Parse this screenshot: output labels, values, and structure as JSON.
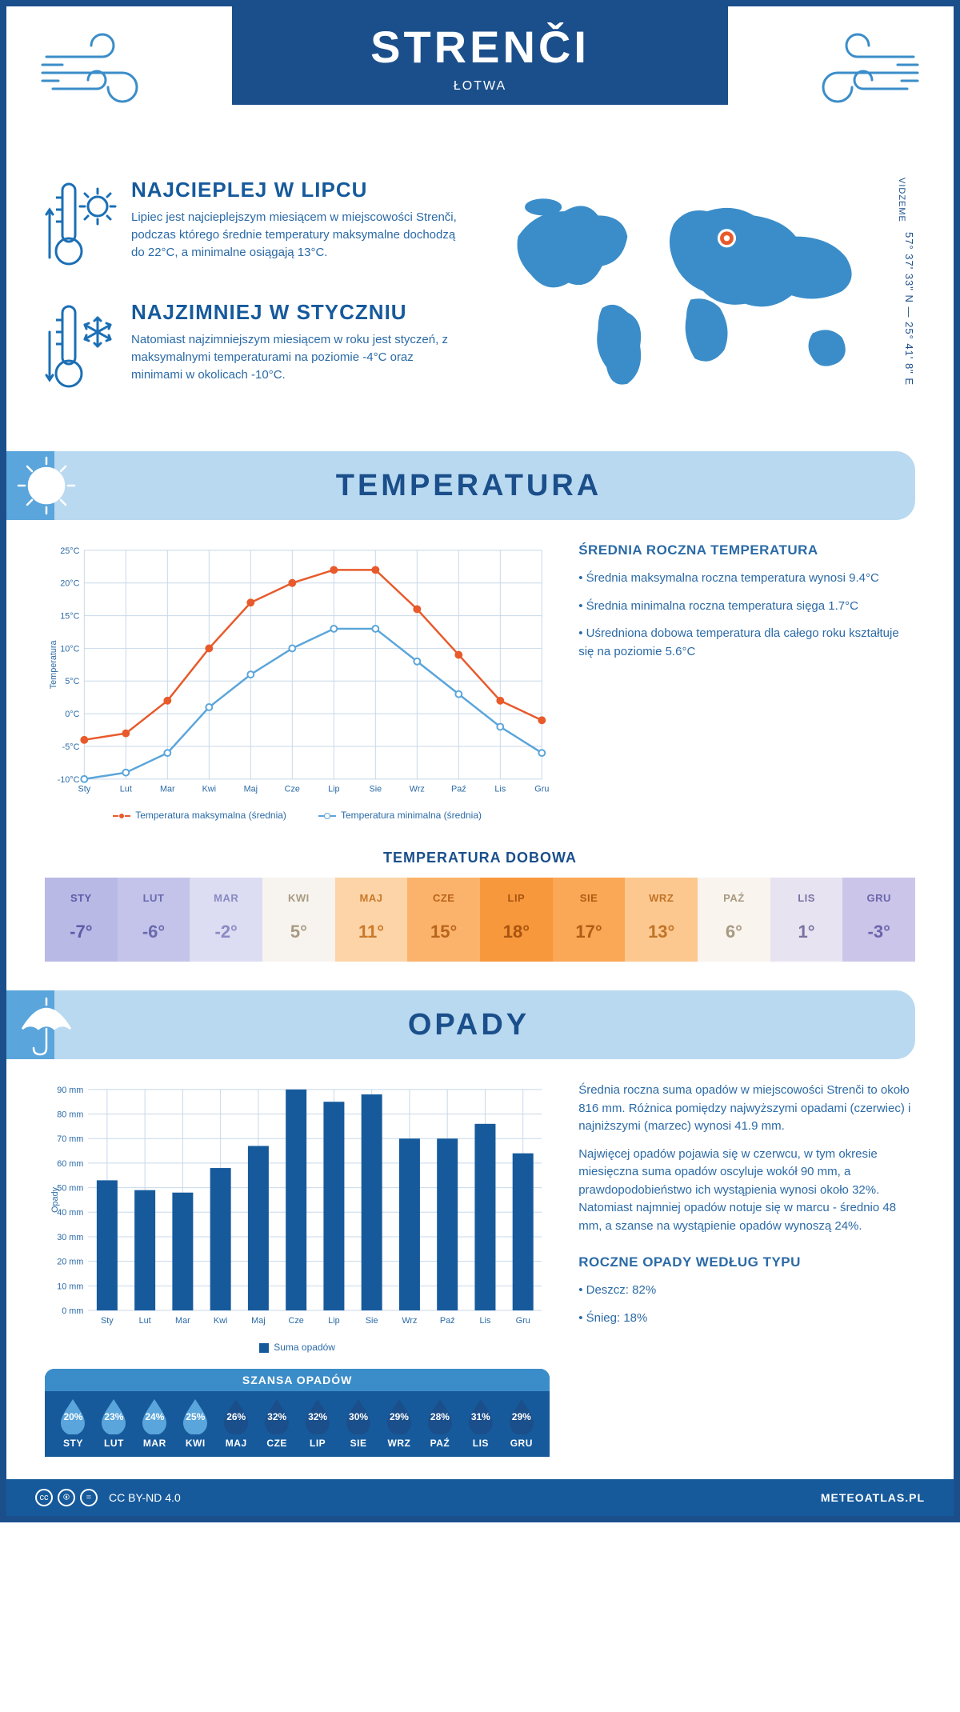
{
  "header": {
    "title": "STRENČI",
    "country": "ŁOTWA"
  },
  "coords": "57° 37' 33\" N — 25° 41' 8\" E",
  "region": "VIDZEME",
  "highlights": {
    "warm": {
      "title": "NAJCIEPLEJ W LIPCU",
      "text": "Lipiec jest najcieplejszym miesiącem w miejscowości Strenči, podczas którego średnie temperatury maksymalne dochodzą do 22°C, a minimalne osiągają 13°C."
    },
    "cold": {
      "title": "NAJZIMNIEJ W STYCZNIU",
      "text": "Natomiast najzimniejszym miesiącem w roku jest styczeń, z maksymalnymi temperaturami na poziomie -4°C oraz minimami w okolicach -10°C."
    }
  },
  "temp_section": {
    "banner": "TEMPERATURA",
    "side_title": "ŚREDNIA ROCZNA TEMPERATURA",
    "bullets": [
      "• Średnia maksymalna roczna temperatura wynosi 9.4°C",
      "• Średnia minimalna roczna temperatura sięga 1.7°C",
      "• Uśredniona dobowa temperatura dla całego roku kształtuje się na poziomie 5.6°C"
    ],
    "chart": {
      "type": "line",
      "months": [
        "Sty",
        "Lut",
        "Mar",
        "Kwi",
        "Maj",
        "Cze",
        "Lip",
        "Sie",
        "Wrz",
        "Paź",
        "Lis",
        "Gru"
      ],
      "max": [
        -4,
        -3,
        2,
        10,
        17,
        20,
        22,
        22,
        16,
        9,
        2,
        -1
      ],
      "min": [
        -10,
        -9,
        -6,
        1,
        6,
        10,
        13,
        13,
        8,
        3,
        -2,
        -6
      ],
      "ylim": [
        -10,
        25
      ],
      "ytick_step": 5,
      "ylabel": "Temperatura",
      "max_color": "#e85a2b",
      "min_color": "#5aa5db",
      "grid_color": "#c8d8e8",
      "legend_max": "Temperatura maksymalna (średnia)",
      "legend_min": "Temperatura minimalna (średnia)"
    },
    "daily_title": "TEMPERATURA DOBOWA",
    "daily": {
      "months": [
        "STY",
        "LUT",
        "MAR",
        "KWI",
        "MAJ",
        "CZE",
        "LIP",
        "SIE",
        "WRZ",
        "PAŹ",
        "LIS",
        "GRU"
      ],
      "values": [
        "-7°",
        "-6°",
        "-2°",
        "5°",
        "11°",
        "15°",
        "18°",
        "17°",
        "13°",
        "6°",
        "1°",
        "-3°"
      ],
      "colors": [
        "#b9b9e6",
        "#c4c4ea",
        "#dcdcf2",
        "#f7f3ee",
        "#fdd4a7",
        "#fbb36c",
        "#f8983d",
        "#faa756",
        "#fcc88f",
        "#f9f4ee",
        "#e8e3f1",
        "#cbc6e9"
      ],
      "text_colors": [
        "#5b5ba6",
        "#6a6aae",
        "#8a8ac4",
        "#a89a82",
        "#c97a2b",
        "#b9641a",
        "#a9540f",
        "#b05c14",
        "#c17327",
        "#a89a82",
        "#7a74a2",
        "#6b65ac"
      ]
    }
  },
  "precip_section": {
    "banner": "OPADY",
    "text1": "Średnia roczna suma opadów w miejscowości Strenči to około 816 mm. Różnica pomiędzy najwyższymi opadami (czerwiec) i najniższymi (marzec) wynosi 41.9 mm.",
    "text2": "Najwięcej opadów pojawia się w czerwcu, w tym okresie miesięczna suma opadów oscyluje wokół 90 mm, a prawdopodobieństwo ich wystąpienia wynosi około 32%. Natomiast najmniej opadów notuje się w marcu - średnio 48 mm, a szanse na wystąpienie opadów wynoszą 24%.",
    "chart": {
      "type": "bar",
      "months": [
        "Sty",
        "Lut",
        "Mar",
        "Kwi",
        "Maj",
        "Cze",
        "Lip",
        "Sie",
        "Wrz",
        "Paź",
        "Lis",
        "Gru"
      ],
      "values": [
        53,
        49,
        48,
        58,
        67,
        90,
        85,
        88,
        70,
        70,
        76,
        64
      ],
      "ylim": [
        0,
        90
      ],
      "ytick_step": 10,
      "ylabel": "Opady",
      "bar_color": "#165a9c",
      "grid_color": "#c8d8e8",
      "legend": "Suma opadów"
    },
    "chance_title": "SZANSA OPADÓW",
    "chance": {
      "months": [
        "STY",
        "LUT",
        "MAR",
        "KWI",
        "MAJ",
        "CZE",
        "LIP",
        "SIE",
        "WRZ",
        "PAŹ",
        "LIS",
        "GRU"
      ],
      "values": [
        "20%",
        "23%",
        "24%",
        "25%",
        "26%",
        "32%",
        "32%",
        "30%",
        "29%",
        "28%",
        "31%",
        "29%"
      ],
      "light_until": 4
    },
    "type_title": "ROCZNE OPADY WEDŁUG TYPU",
    "types": [
      "• Deszcz: 82%",
      "• Śnieg: 18%"
    ]
  },
  "footer": {
    "license": "CC BY-ND 4.0",
    "brand": "METEOATLAS.PL"
  }
}
